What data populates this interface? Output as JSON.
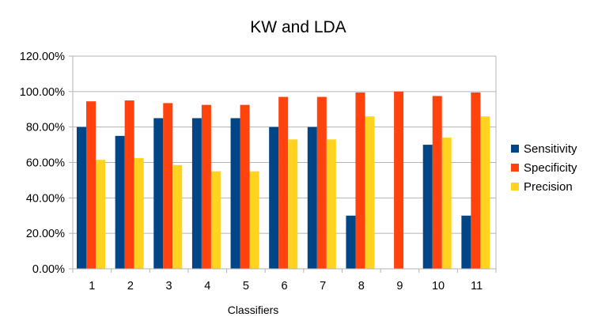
{
  "chart_data": {
    "type": "bar",
    "title": "KW and LDA",
    "xlabel": "Classifiers",
    "ylabel": "",
    "ylim": [
      0,
      1.2
    ],
    "ytick_labels": [
      "0.00%",
      "20.00%",
      "40.00%",
      "60.00%",
      "80.00%",
      "100.00%",
      "120.00%"
    ],
    "grid": true,
    "legend_position": "right",
    "categories": [
      "1",
      "2",
      "3",
      "4",
      "5",
      "6",
      "7",
      "8",
      "9",
      "10",
      "11"
    ],
    "series": [
      {
        "name": "Sensitivity",
        "color": "#004586",
        "values": [
          0.8,
          0.75,
          0.85,
          0.85,
          0.85,
          0.8,
          0.8,
          0.3,
          0.0,
          0.7,
          0.3
        ]
      },
      {
        "name": "Specificity",
        "color": "#ff420e",
        "values": [
          0.945,
          0.95,
          0.935,
          0.925,
          0.925,
          0.97,
          0.97,
          0.995,
          1.0,
          0.975,
          0.995
        ]
      },
      {
        "name": "Precision",
        "color": "#ffd320",
        "values": [
          0.615,
          0.625,
          0.585,
          0.55,
          0.55,
          0.73,
          0.73,
          0.86,
          0.0,
          0.74,
          0.86
        ]
      }
    ]
  }
}
